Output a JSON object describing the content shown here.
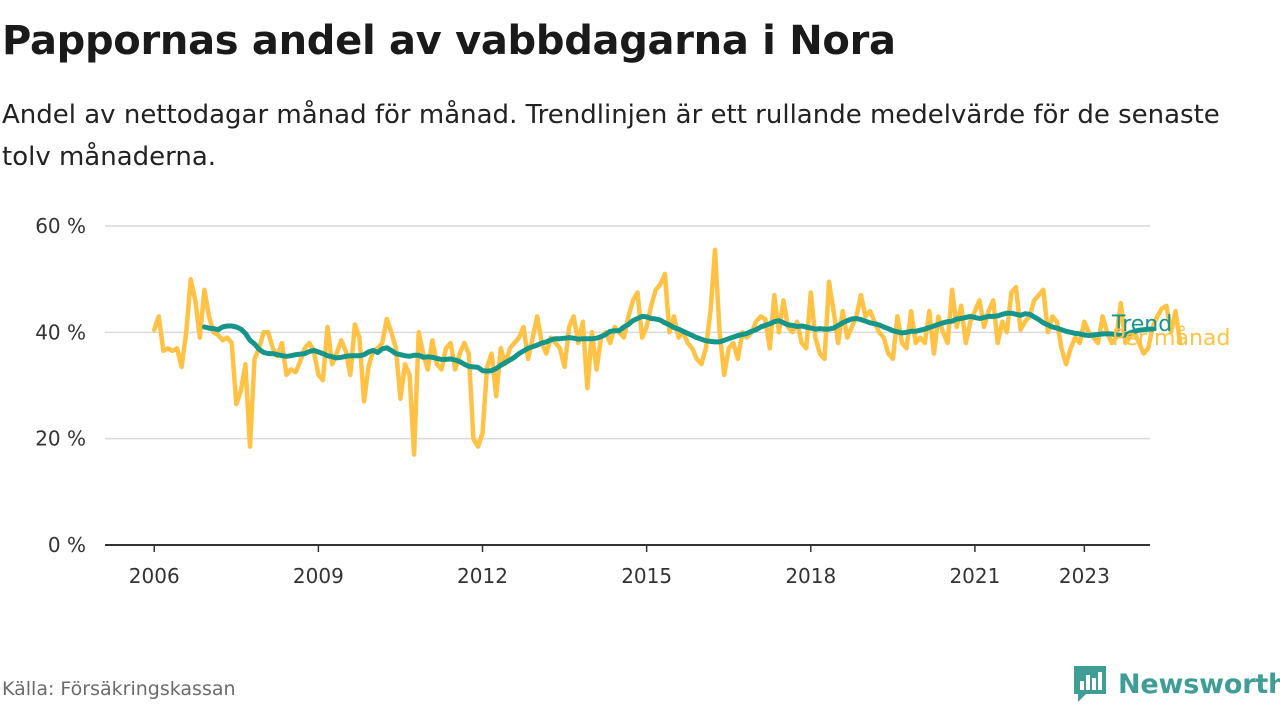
{
  "header": {
    "title": "Pappornas andel av vabbdagarna i Nora",
    "subtitle": "Andel av nettodagar månad för månad. Trendlinjen är ett rullande medelvärde för de senaste tolv månaderna."
  },
  "footer": {
    "source": "Källa: Försäkringskassan",
    "brand": "Newsworthy"
  },
  "colors": {
    "monthly": "#ffc245",
    "trend": "#16958a",
    "grid": "#d9d9d9",
    "axis": "#333333",
    "brand": "#3f9d96"
  },
  "chart_data": {
    "type": "line",
    "x_unit": "year (decimal, month-by-month)",
    "x_ticks": [
      2006,
      2009,
      2012,
      2015,
      2018,
      2021,
      2023
    ],
    "x_tick_labels": [
      "2006",
      "2009",
      "2012",
      "2015",
      "2018",
      "2021",
      "2023"
    ],
    "y_ticks": [
      0,
      20,
      40,
      60
    ],
    "y_tick_labels": [
      "0 %",
      "20 %",
      "40 %",
      "60 %"
    ],
    "ylim": [
      0,
      60
    ],
    "xlim": [
      2005.1,
      2024.2
    ],
    "grid": true,
    "series": [
      {
        "name": "Per månad",
        "x_start": 2006.0,
        "x_step_months": 1,
        "values": [
          40.5,
          43,
          36.5,
          37,
          36.5,
          37,
          33.5,
          40,
          50,
          46,
          39,
          48,
          43,
          40,
          39.5,
          38.5,
          39,
          38,
          26.5,
          29,
          34,
          18.5,
          35,
          37,
          40,
          40,
          37,
          35.5,
          38,
          32,
          33,
          32.5,
          34.5,
          37,
          38,
          36.5,
          32,
          31,
          41,
          34,
          36,
          38.5,
          36.5,
          32,
          41.5,
          39,
          27,
          33.5,
          36.5,
          37,
          38,
          42.5,
          40,
          37,
          27.5,
          34,
          32,
          17,
          40,
          36,
          33,
          38.5,
          34,
          33,
          37,
          38,
          33,
          36,
          38,
          36,
          20,
          18.5,
          21,
          33.5,
          36,
          28,
          37,
          34,
          37,
          38,
          39,
          41,
          35,
          39,
          43,
          38,
          36,
          39,
          38,
          37,
          33.5,
          41,
          43,
          38,
          42,
          29.5,
          40,
          33,
          39,
          40,
          38,
          41,
          40,
          39,
          43,
          46,
          47.5,
          39,
          41,
          45,
          48,
          49,
          51,
          40,
          43,
          39,
          40,
          38,
          37,
          35,
          34,
          37,
          44,
          55.5,
          40,
          32,
          37,
          38,
          35,
          40,
          39,
          40,
          42,
          43,
          42.5,
          37,
          47,
          40,
          46,
          41,
          40,
          42,
          38,
          37,
          47.5,
          39,
          36,
          35,
          49.5,
          44,
          38,
          44,
          39,
          41,
          43,
          47,
          43,
          44,
          42,
          40,
          39,
          36,
          35,
          43,
          38,
          37,
          44,
          38,
          39,
          38,
          44,
          36,
          43,
          40,
          38,
          48,
          41,
          45,
          38,
          42,
          44,
          46,
          41,
          44,
          46,
          38,
          42,
          40,
          47.5,
          48.5,
          40.5,
          42,
          43,
          46,
          47,
          48,
          40,
          43,
          42,
          37,
          34,
          37,
          39,
          38,
          42,
          40,
          39,
          38,
          43,
          40,
          38,
          39,
          45.5,
          38,
          39,
          40,
          38,
          36,
          37,
          41,
          43,
          44.5,
          45,
          40,
          44,
          38
        ]
      },
      {
        "name": "Trend",
        "x_start": 2006.917,
        "x_step_months": 1,
        "values": [
          41,
          40.8,
          40.7,
          40.5,
          41,
          41.2,
          41.2,
          41,
          40.6,
          39.8,
          38.5,
          37.8,
          36.8,
          36.2,
          36,
          36,
          35.8,
          35.6,
          35.5,
          35.6,
          35.8,
          35.9,
          36,
          36.4,
          36.6,
          36.3,
          36,
          35.6,
          35.4,
          35.2,
          35.3,
          35.5,
          35.6,
          35.6,
          35.6,
          35.8,
          36.3,
          36.6,
          36.2,
          36.9,
          37.1,
          36.6,
          36,
          35.8,
          35.6,
          35.5,
          35.7,
          35.7,
          35.3,
          35.4,
          35.3,
          35.1,
          34.9,
          34.9,
          35,
          34.8,
          34.5,
          34,
          33.6,
          33.5,
          33.4,
          32.8,
          32.7,
          32.8,
          33.2,
          33.8,
          34.3,
          34.8,
          35.3,
          36,
          36.5,
          37,
          37.3,
          37.6,
          38,
          38.2,
          38.6,
          38.8,
          38.8,
          38.9,
          39,
          38.9,
          38.7,
          38.8,
          38.8,
          38.8,
          38.9,
          39.2,
          39.6,
          40.2,
          40.3,
          40.3,
          41,
          41.5,
          42.2,
          42.6,
          43,
          42.9,
          42.6,
          42.5,
          42.3,
          41.8,
          41.4,
          40.9,
          40.6,
          40.2,
          39.8,
          39.4,
          39,
          38.7,
          38.4,
          38.3,
          38.2,
          38.2,
          38.5,
          38.8,
          39.1,
          39.4,
          39.6,
          39.8,
          40.2,
          40.5,
          41,
          41.3,
          41.6,
          42,
          42.2,
          41.8,
          41.4,
          41.3,
          41.1,
          41.2,
          41,
          40.8,
          40.6,
          40.7,
          40.6,
          40.6,
          40.8,
          41.3,
          41.8,
          42.2,
          42.5,
          42.6,
          42.4,
          42.1,
          41.8,
          41.6,
          41.4,
          41,
          40.7,
          40.3,
          40.1,
          39.9,
          40,
          40.2,
          40.2,
          40.4,
          40.6,
          40.9,
          41.2,
          41.5,
          41.8,
          42,
          42.1,
          42.5,
          42.6,
          42.8,
          43,
          42.8,
          42.6,
          42.8,
          43,
          43,
          43.1,
          43.4,
          43.6,
          43.6,
          43.4,
          43.2,
          43.5,
          43.4,
          42.9,
          42.4,
          41.8,
          41.4,
          41,
          40.8,
          40.5,
          40.2,
          40,
          39.8,
          39.7,
          39.5,
          39.4,
          39.5,
          39.6,
          39.7,
          39.7,
          39.7,
          39.5,
          39.4,
          39.5,
          39.9,
          40.2,
          40.4,
          40.5,
          40.6,
          40.6
        ]
      }
    ]
  }
}
